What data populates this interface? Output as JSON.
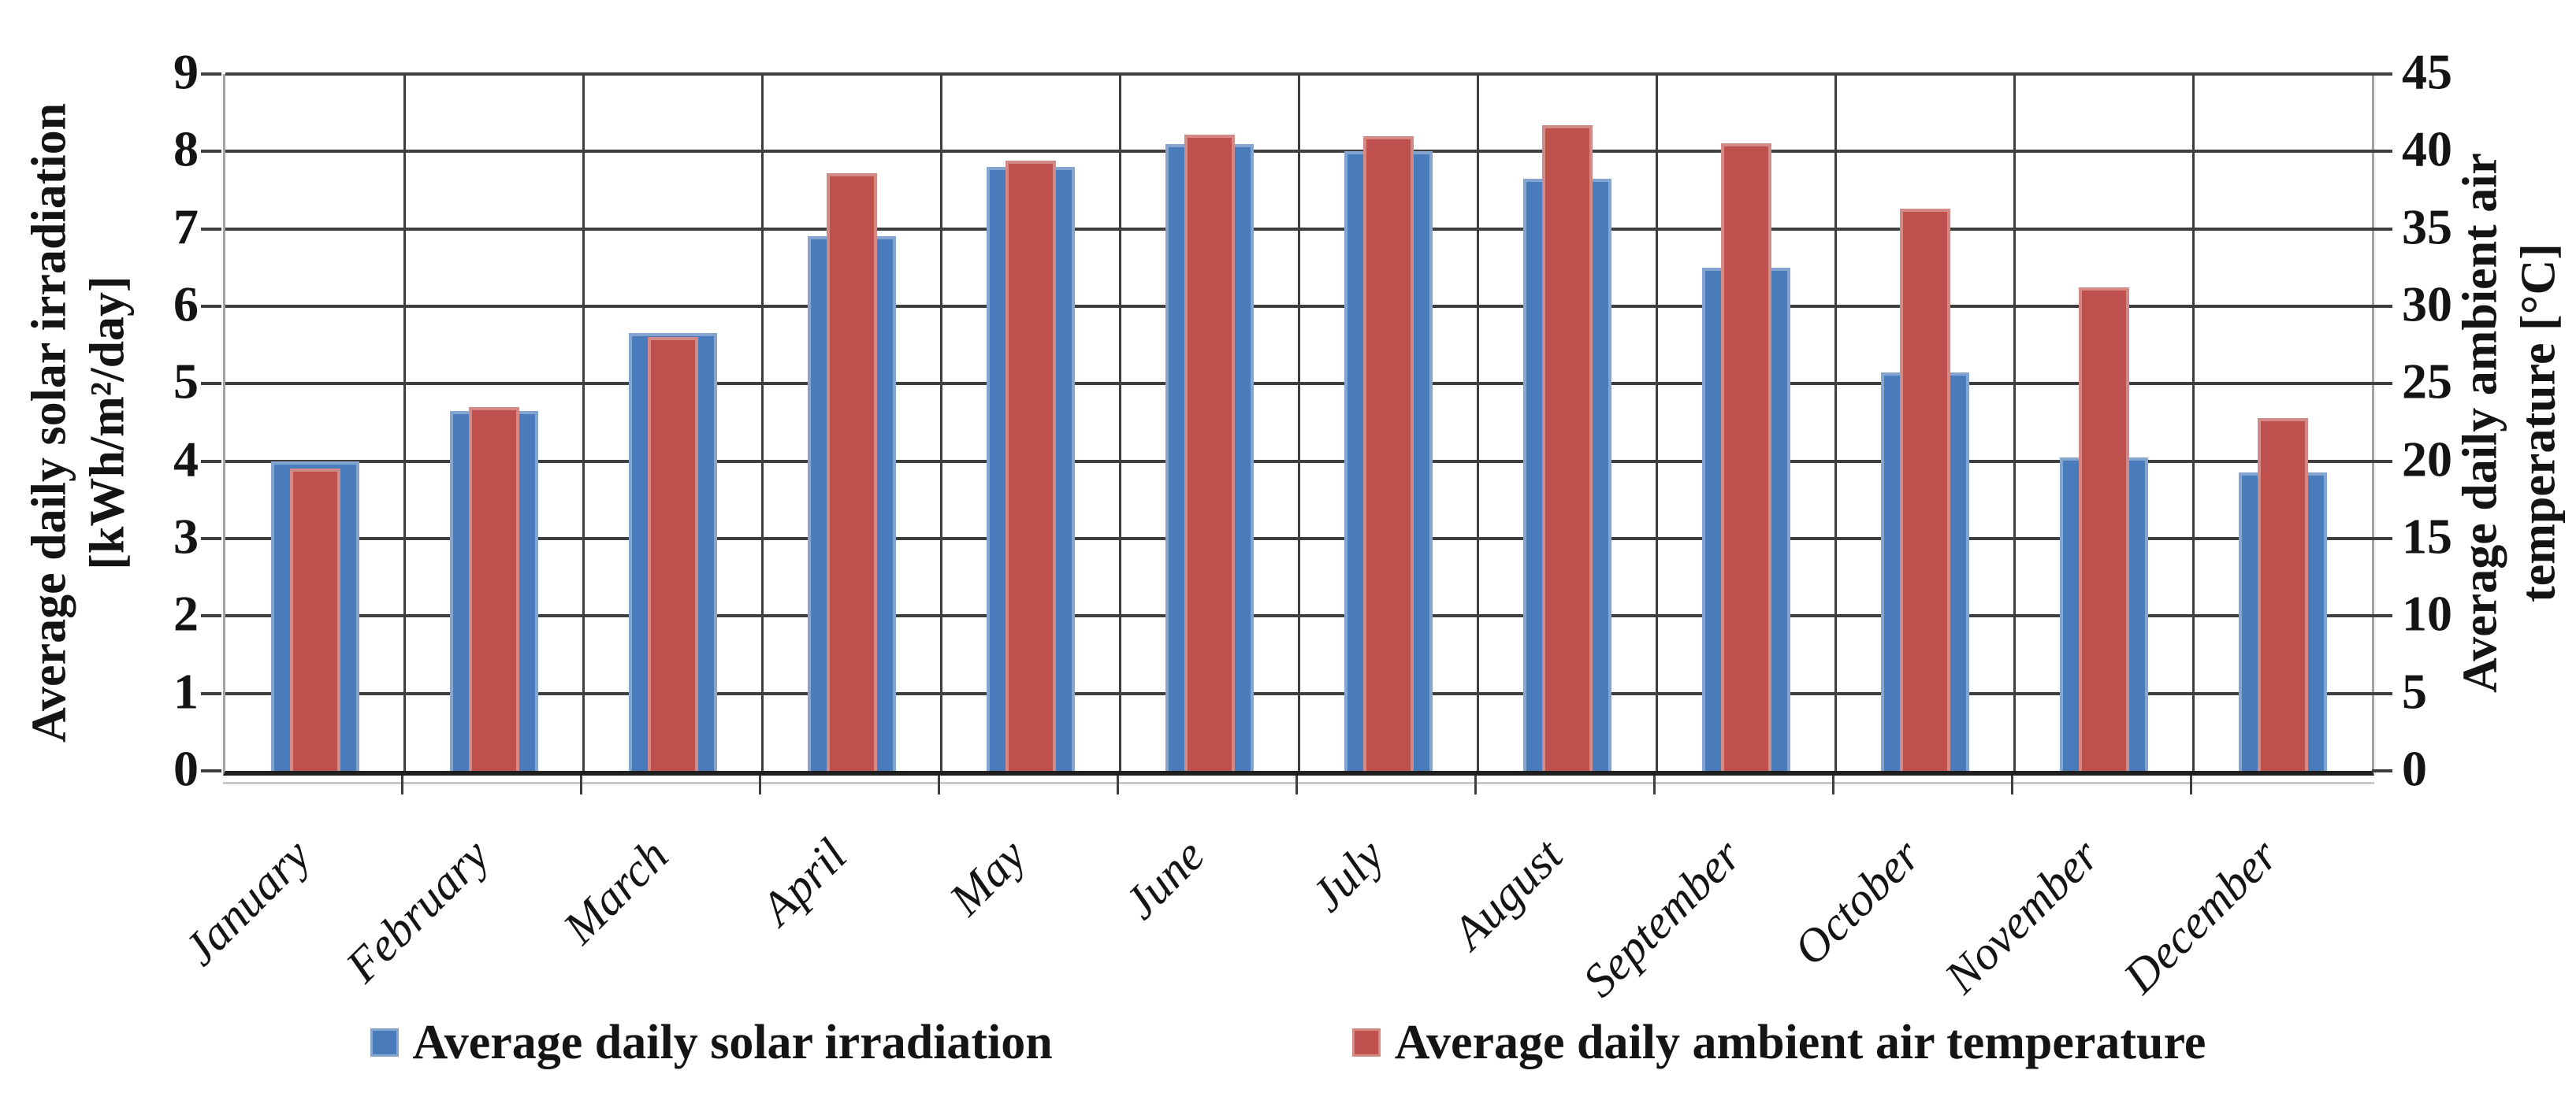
{
  "chart_data": {
    "type": "bar",
    "categories": [
      "January",
      "February",
      "March",
      "April",
      "May",
      "June",
      "July",
      "August",
      "September",
      "October",
      "November",
      "December"
    ],
    "series": [
      {
        "name": "Average daily solar irradiation",
        "axis": "left",
        "unit": "kWh/m²/day",
        "color": "#4a7bba",
        "edge_color": "#84a5cf",
        "values": [
          4.0,
          4.65,
          5.65,
          6.9,
          7.8,
          8.1,
          8.0,
          7.65,
          6.5,
          5.15,
          4.05,
          3.85
        ]
      },
      {
        "name": "Average daily ambient air temperature",
        "axis": "right",
        "unit": "°C",
        "color": "#c0504d",
        "edge_color": "#d28a86",
        "values": [
          19.5,
          23.5,
          28.0,
          38.6,
          39.4,
          41.1,
          41.0,
          41.7,
          40.5,
          36.3,
          31.2,
          22.8
        ]
      }
    ],
    "left_axis": {
      "title": [
        "Average daily solar irradiation",
        "[kWh/m²/day]"
      ],
      "min": 0,
      "max": 9,
      "step": 1,
      "ticks": [
        "0",
        "1",
        "2",
        "3",
        "4",
        "5",
        "6",
        "7",
        "8",
        "9"
      ]
    },
    "right_axis": {
      "title": [
        "Average daily ambient air",
        "temperature [°C]"
      ],
      "min": 0,
      "max": 45,
      "step": 5,
      "ticks": [
        "0",
        "5",
        "10",
        "15",
        "20",
        "25",
        "30",
        "35",
        "40",
        "45"
      ]
    },
    "grid": {
      "horizontal": true,
      "vertical": true
    },
    "legend_position": "bottom"
  }
}
